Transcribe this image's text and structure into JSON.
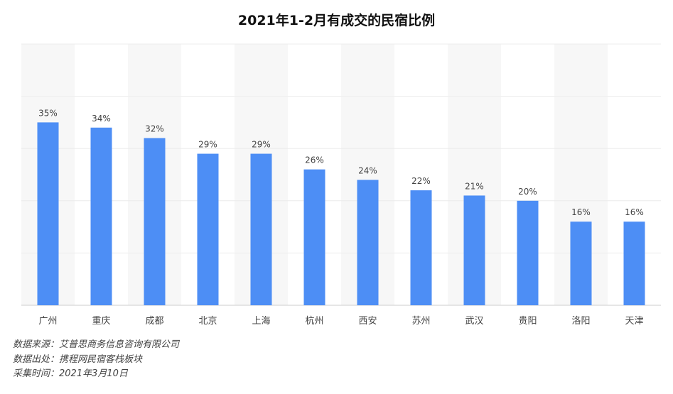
{
  "chart_data": {
    "type": "bar",
    "title": "2021年1-2月有成交的民宿比例",
    "xlabel": "",
    "ylabel": "",
    "categories": [
      "广州",
      "重庆",
      "成都",
      "北京",
      "上海",
      "杭州",
      "西安",
      "苏州",
      "武汉",
      "贵阳",
      "洛阳",
      "天津"
    ],
    "values": [
      35,
      34,
      32,
      29,
      29,
      26,
      24,
      22,
      21,
      20,
      16,
      16
    ],
    "value_labels": [
      "35%",
      "34%",
      "32%",
      "29%",
      "29%",
      "26%",
      "24%",
      "22%",
      "21%",
      "20%",
      "16%",
      "16%"
    ],
    "ylim": [
      0,
      50
    ],
    "grid": true,
    "bar_color": "#4d8ef5",
    "alt_band_color": "#f7f7f7"
  },
  "sources": [
    "数据来源：艾普思商务信息咨询有限公司",
    "数据出处：携程网民宿客栈板块",
    "采集时间：2021年3月10日"
  ]
}
